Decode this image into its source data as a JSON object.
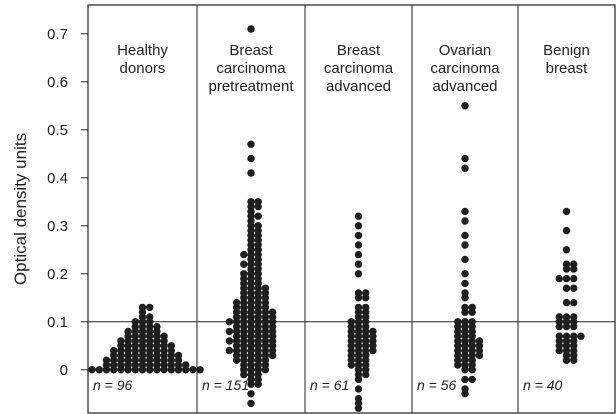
{
  "chart_data": {
    "type": "dotplot",
    "y_label": "Optical density units",
    "ylim": [
      -0.09,
      0.76
    ],
    "yticks": [
      0,
      0.1,
      0.2,
      0.3,
      0.4,
      0.5,
      0.6,
      0.7
    ],
    "hline": 0.1,
    "color": "#1e1e1e",
    "series": [
      {
        "name": "Healthy donors",
        "n_label": "n = 96",
        "values": [
          0.13,
          0.13,
          0.12,
          0.11,
          0.11,
          0.1,
          0.1,
          0.1,
          0.09,
          0.09,
          0.09,
          0.09,
          0.08,
          0.08,
          0.08,
          0.08,
          0.08,
          0.07,
          0.07,
          0.07,
          0.07,
          0.07,
          0.07,
          0.06,
          0.06,
          0.06,
          0.06,
          0.06,
          0.06,
          0.06,
          0.05,
          0.05,
          0.05,
          0.05,
          0.05,
          0.05,
          0.05,
          0.05,
          0.04,
          0.04,
          0.04,
          0.04,
          0.04,
          0.04,
          0.04,
          0.04,
          0.04,
          0.03,
          0.03,
          0.03,
          0.03,
          0.03,
          0.03,
          0.03,
          0.03,
          0.03,
          0.03,
          0.02,
          0.02,
          0.02,
          0.02,
          0.02,
          0.02,
          0.02,
          0.02,
          0.02,
          0.02,
          0.02,
          0.01,
          0.01,
          0.01,
          0.01,
          0.01,
          0.01,
          0.01,
          0.01,
          0.01,
          0.01,
          0.01,
          0.01,
          0,
          0,
          0,
          0,
          0,
          0,
          0,
          0,
          0,
          0,
          0,
          0,
          0,
          0,
          0,
          0
        ]
      },
      {
        "name": "Breast carcinoma pretreatment",
        "n_label": "n = 151",
        "values": [
          0.71,
          0.47,
          0.44,
          0.41,
          0.35,
          0.35,
          0.34,
          0.34,
          0.33,
          0.32,
          0.32,
          0.31,
          0.3,
          0.3,
          0.29,
          0.29,
          0.28,
          0.28,
          0.27,
          0.27,
          0.26,
          0.26,
          0.25,
          0.25,
          0.24,
          0.24,
          0.24,
          0.23,
          0.23,
          0.22,
          0.22,
          0.22,
          0.21,
          0.21,
          0.2,
          0.2,
          0.2,
          0.19,
          0.19,
          0.19,
          0.18,
          0.18,
          0.18,
          0.17,
          0.17,
          0.17,
          0.17,
          0.16,
          0.16,
          0.16,
          0.16,
          0.15,
          0.15,
          0.15,
          0.15,
          0.14,
          0.14,
          0.14,
          0.14,
          0.14,
          0.13,
          0.13,
          0.13,
          0.13,
          0.13,
          0.12,
          0.12,
          0.12,
          0.12,
          0.12,
          0.12,
          0.11,
          0.11,
          0.11,
          0.11,
          0.11,
          0.11,
          0.1,
          0.1,
          0.1,
          0.1,
          0.1,
          0.1,
          0.1,
          0.09,
          0.09,
          0.09,
          0.09,
          0.09,
          0.09,
          0.08,
          0.08,
          0.08,
          0.08,
          0.08,
          0.08,
          0.08,
          0.07,
          0.07,
          0.07,
          0.07,
          0.07,
          0.07,
          0.06,
          0.06,
          0.06,
          0.06,
          0.06,
          0.06,
          0.06,
          0.05,
          0.05,
          0.05,
          0.05,
          0.05,
          0.05,
          0.04,
          0.04,
          0.04,
          0.04,
          0.04,
          0.04,
          0.04,
          0.03,
          0.03,
          0.03,
          0.03,
          0.03,
          0.03,
          0.02,
          0.02,
          0.02,
          0.02,
          0.02,
          0.01,
          0.01,
          0.01,
          0.01,
          0,
          0,
          0,
          0,
          -0.01,
          -0.01,
          -0.01,
          -0.02,
          -0.02,
          -0.03,
          -0.03,
          -0.05,
          -0.07
        ]
      },
      {
        "name": "Breast carcinoma advanced",
        "n_label": "n = 61",
        "values": [
          0.32,
          0.3,
          0.28,
          0.26,
          0.24,
          0.22,
          0.2,
          0.16,
          0.16,
          0.15,
          0.15,
          0.13,
          0.13,
          0.12,
          0.12,
          0.11,
          0.11,
          0.1,
          0.1,
          0.1,
          0.09,
          0.09,
          0.09,
          0.08,
          0.08,
          0.08,
          0.08,
          0.07,
          0.07,
          0.07,
          0.07,
          0.06,
          0.06,
          0.06,
          0.06,
          0.05,
          0.05,
          0.05,
          0.05,
          0.04,
          0.04,
          0.04,
          0.04,
          0.03,
          0.03,
          0.03,
          0.02,
          0.02,
          0.02,
          0.01,
          0.01,
          0.01,
          0,
          0,
          -0.01,
          -0.01,
          -0.02,
          -0.04,
          -0.06,
          -0.07,
          -0.08
        ]
      },
      {
        "name": "Ovarian carcinoma advanced",
        "n_label": "n = 56",
        "values": [
          0.55,
          0.44,
          0.42,
          0.33,
          0.31,
          0.28,
          0.26,
          0.23,
          0.2,
          0.18,
          0.16,
          0.15,
          0.13,
          0.13,
          0.12,
          0.12,
          0.1,
          0.1,
          0.1,
          0.09,
          0.09,
          0.09,
          0.08,
          0.08,
          0.08,
          0.07,
          0.07,
          0.07,
          0.06,
          0.06,
          0.06,
          0.06,
          0.05,
          0.05,
          0.05,
          0.05,
          0.04,
          0.04,
          0.04,
          0.04,
          0.03,
          0.03,
          0.03,
          0.03,
          0.02,
          0.02,
          0.02,
          0.01,
          0.01,
          0.01,
          0,
          0,
          -0.02,
          -0.02,
          -0.04,
          -0.05
        ]
      },
      {
        "name": "Benign breast",
        "n_label": "n = 40",
        "values": [
          0.33,
          0.29,
          0.25,
          0.22,
          0.22,
          0.21,
          0.21,
          0.19,
          0.19,
          0.19,
          0.17,
          0.17,
          0.14,
          0.14,
          0.11,
          0.11,
          0.11,
          0.1,
          0.1,
          0.1,
          0.09,
          0.09,
          0.09,
          0.07,
          0.07,
          0.07,
          0.07,
          0.06,
          0.06,
          0.06,
          0.05,
          0.05,
          0.05,
          0.04,
          0.04,
          0.04,
          0.03,
          0.03,
          0.02,
          0.02
        ]
      }
    ]
  }
}
